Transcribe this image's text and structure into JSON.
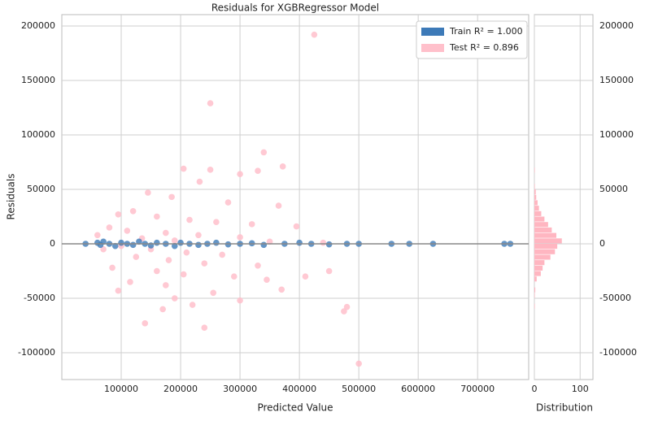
{
  "chart_data": [
    {
      "type": "scatter",
      "title": "Residuals for XGBRegressor Model",
      "xlabel": "Predicted Value",
      "ylabel": "Residuals",
      "xlim": [
        0,
        786000
      ],
      "ylim": [
        -124600,
        210400
      ],
      "xticks": [
        100000,
        200000,
        300000,
        400000,
        500000,
        600000,
        700000
      ],
      "yticks": [
        -100000,
        -50000,
        0,
        50000,
        100000,
        150000,
        200000
      ],
      "grid": true,
      "legend": "upper right",
      "reference_line": 0,
      "series": [
        {
          "name": "Test R² = 0.896",
          "color": "#ffc0cb",
          "x": [
            425000,
            250000,
            340000,
            372000,
            205000,
            250000,
            330000,
            300000,
            232000,
            145000,
            185000,
            280000,
            365000,
            120000,
            95000,
            160000,
            215000,
            260000,
            320000,
            395000,
            80000,
            110000,
            175000,
            230000,
            300000,
            135000,
            190000,
            350000,
            440000,
            100000,
            150000,
            210000,
            270000,
            125000,
            180000,
            240000,
            330000,
            85000,
            160000,
            205000,
            290000,
            345000,
            115000,
            175000,
            370000,
            95000,
            255000,
            190000,
            300000,
            220000,
            170000,
            480000,
            475000,
            140000,
            240000,
            500000,
            410000,
            60000,
            70000,
            450000
          ],
          "values": [
            192000,
            129000,
            84000,
            71000,
            69000,
            68000,
            67000,
            64000,
            57000,
            47000,
            43000,
            38000,
            35000,
            30000,
            27000,
            25000,
            22000,
            20000,
            18000,
            16000,
            15000,
            12000,
            10000,
            8000,
            6000,
            5000,
            3000,
            2000,
            1000,
            -2000,
            -5000,
            -8000,
            -10000,
            -12000,
            -15000,
            -18000,
            -20000,
            -22000,
            -25000,
            -28000,
            -30000,
            -33000,
            -35000,
            -38000,
            -42000,
            -43000,
            -45000,
            -50000,
            -52000,
            -56000,
            -60000,
            -58000,
            -62000,
            -73000,
            -77000,
            -110000,
            -30000,
            8000,
            -5000,
            -25000
          ]
        },
        {
          "name": "Train R² = 1.000",
          "color": "#3d7ab8",
          "x": [
            40000,
            60000,
            65000,
            70000,
            80000,
            90000,
            100000,
            110000,
            120000,
            130000,
            140000,
            150000,
            160000,
            175000,
            190000,
            200000,
            215000,
            230000,
            245000,
            260000,
            280000,
            300000,
            320000,
            340000,
            375000,
            400000,
            420000,
            450000,
            480000,
            500000,
            555000,
            585000,
            625000,
            745000,
            755000
          ],
          "values": [
            0,
            1000,
            -1000,
            2000,
            0,
            -2000,
            1000,
            0,
            -1000,
            2000,
            0,
            -1500,
            1000,
            0,
            -2000,
            1000,
            0,
            -1000,
            0,
            1000,
            -500,
            0,
            500,
            -1000,
            0,
            1000,
            0,
            -500,
            0,
            0,
            0,
            0,
            0,
            0,
            0
          ]
        }
      ]
    },
    {
      "type": "histogram",
      "xlabel": "Distribution",
      "orientation": "horizontal",
      "color": "#ffb6c1",
      "xlim": [
        0,
        128
      ],
      "xticks": [
        0,
        100
      ],
      "ylim": [
        -124600,
        210400
      ],
      "yticks": [
        -100000,
        -50000,
        0,
        50000,
        100000,
        150000,
        200000
      ],
      "bins": [
        -60000,
        -55000,
        -50000,
        -45000,
        -40000,
        -35000,
        -30000,
        -25000,
        -20000,
        -15000,
        -10000,
        -5000,
        0,
        5000,
        10000,
        15000,
        20000,
        25000,
        30000,
        35000,
        40000,
        45000,
        50000,
        55000,
        60000,
        65000,
        70000
      ],
      "values": [
        1,
        0,
        1,
        2,
        0,
        5,
        14,
        18,
        22,
        35,
        45,
        50,
        60,
        48,
        38,
        30,
        22,
        15,
        10,
        7,
        4,
        3,
        1,
        0,
        0,
        1
      ]
    }
  ]
}
